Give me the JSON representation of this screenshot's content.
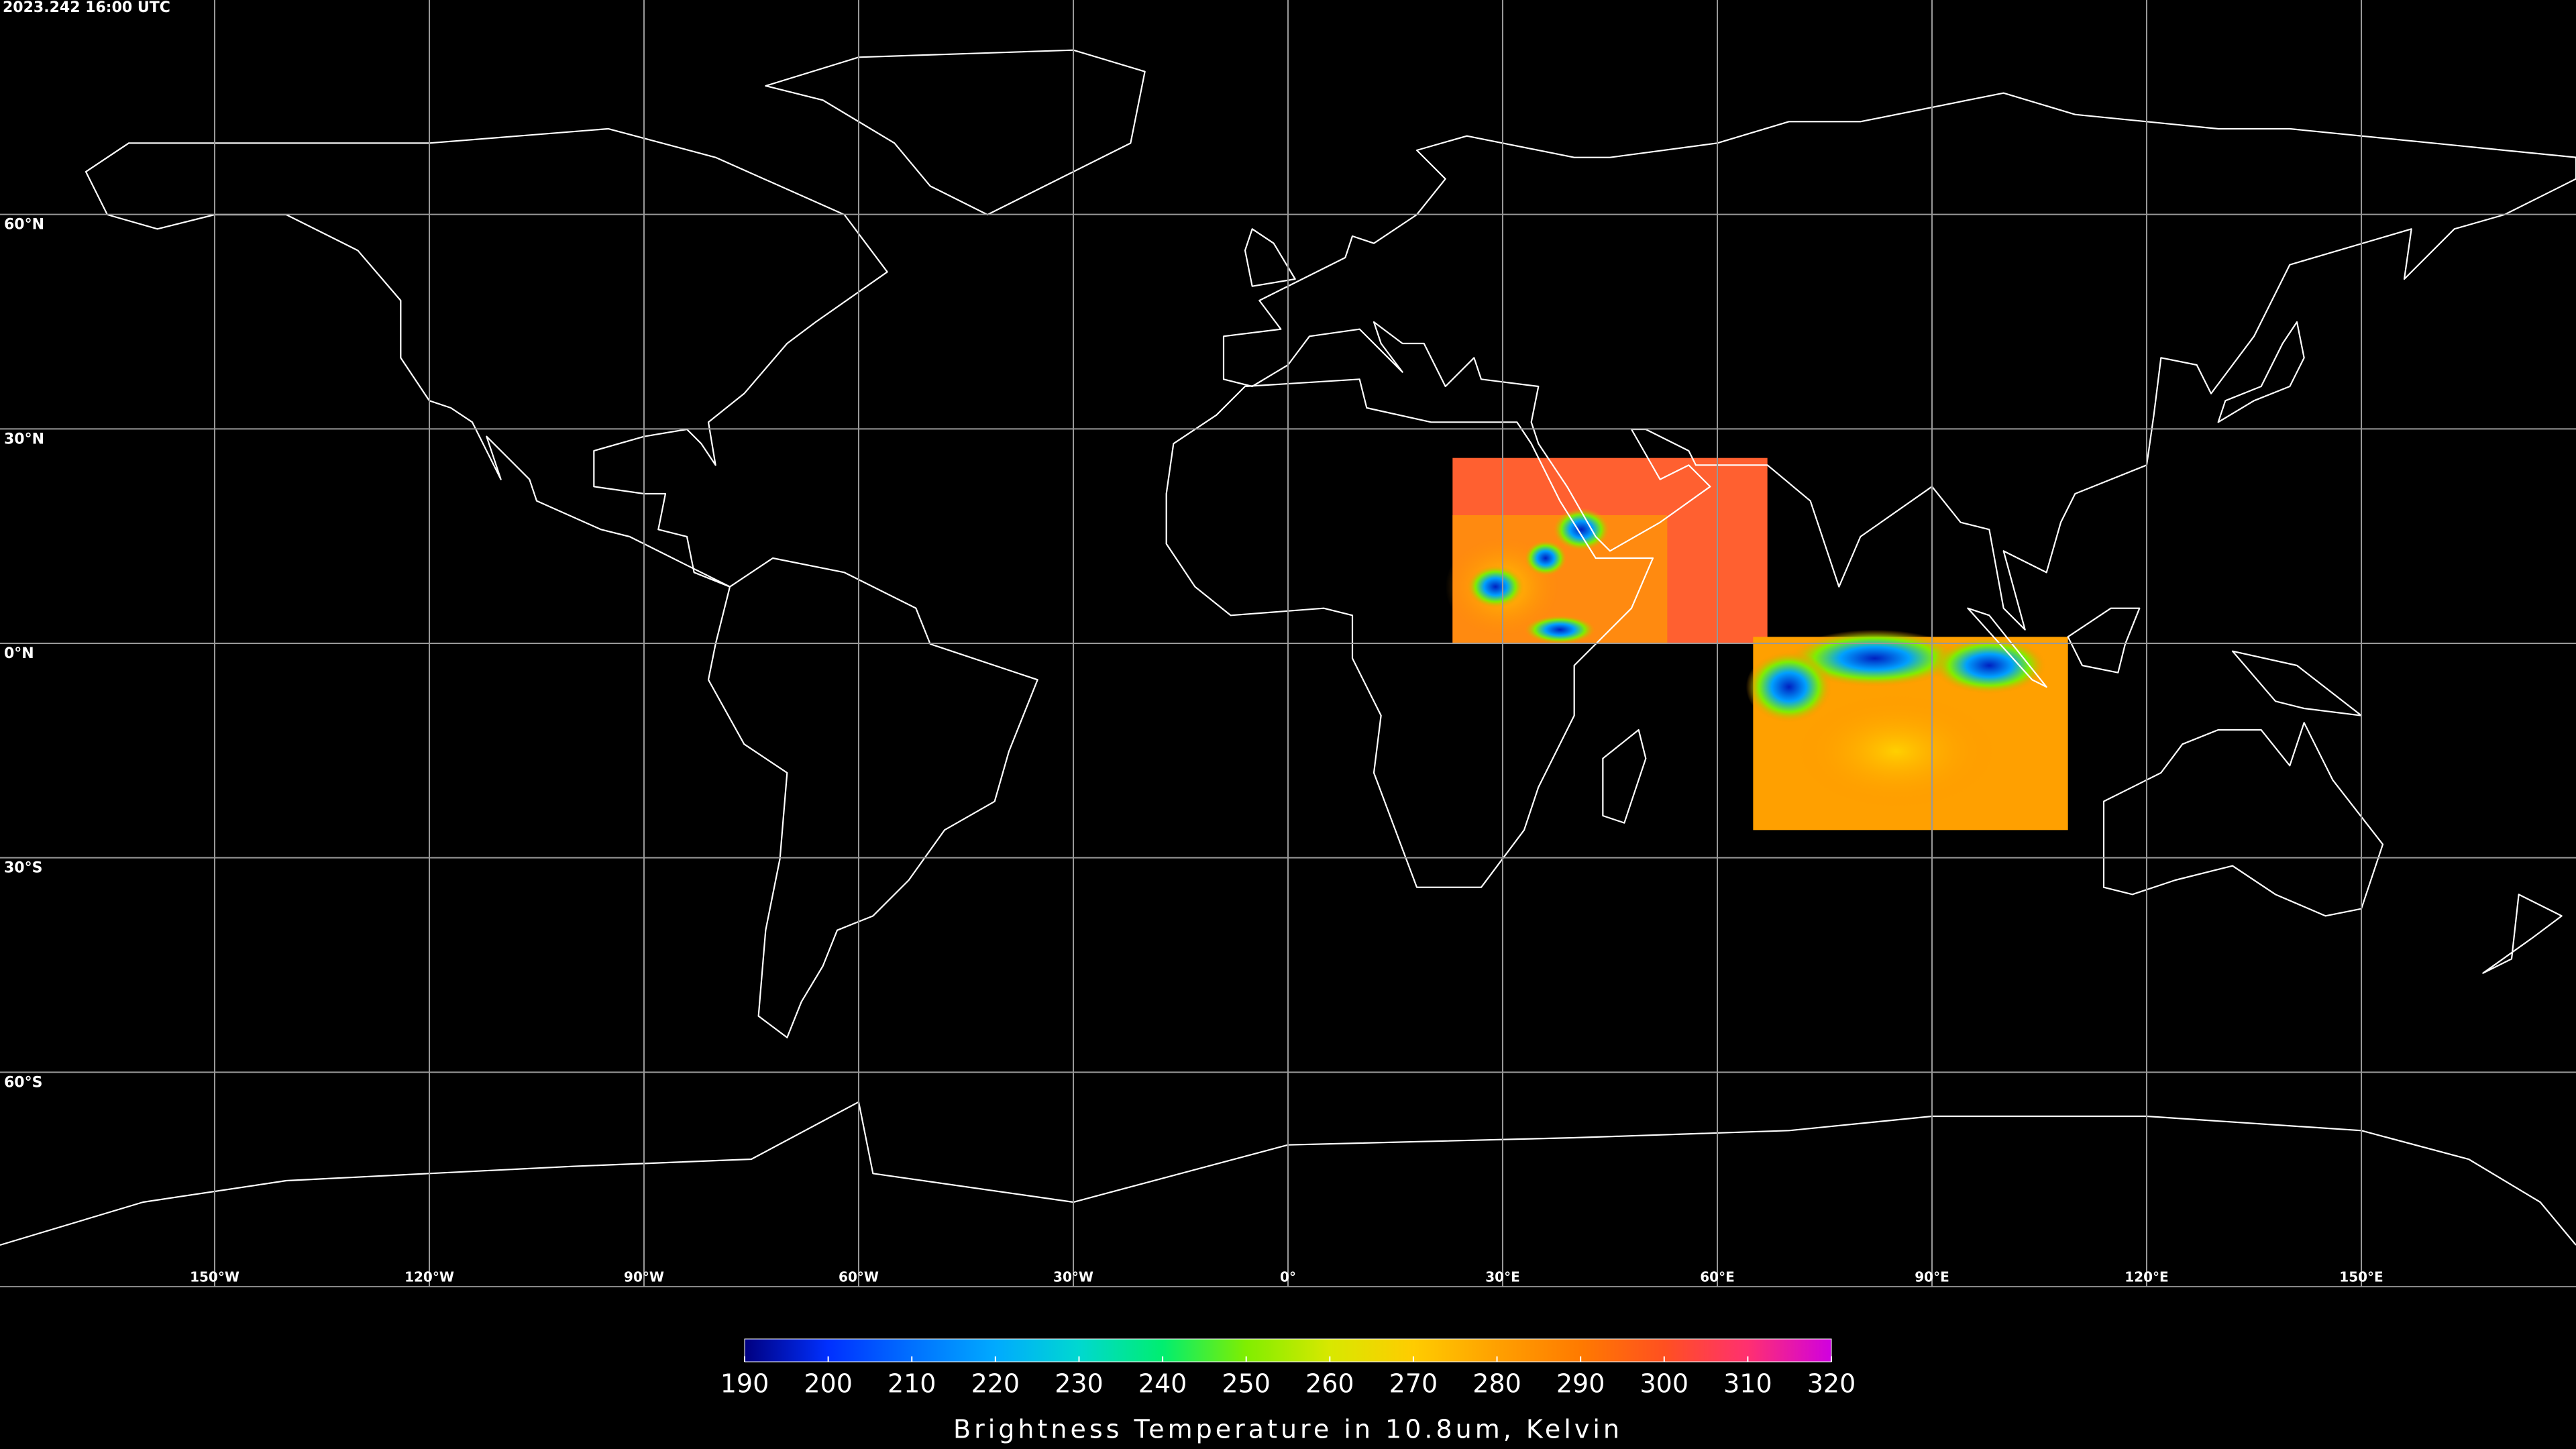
{
  "timestamp": "2023.242 16:00 UTC",
  "map": {
    "grid": true,
    "lon_ticks": [
      {
        "value": -150,
        "label": "150°W"
      },
      {
        "value": -120,
        "label": "120°W"
      },
      {
        "value": -90,
        "label": "90°W"
      },
      {
        "value": -60,
        "label": "60°W"
      },
      {
        "value": -30,
        "label": "30°W"
      },
      {
        "value": 0,
        "label": "0°"
      },
      {
        "value": 30,
        "label": "30°E"
      },
      {
        "value": 60,
        "label": "60°E"
      },
      {
        "value": 90,
        "label": "90°E"
      },
      {
        "value": 120,
        "label": "120°E"
      },
      {
        "value": 150,
        "label": "150°E"
      }
    ],
    "lat_ticks": [
      {
        "value": 60,
        "label": "60°N"
      },
      {
        "value": 30,
        "label": "30°N"
      },
      {
        "value": 0,
        "label": "0°N"
      },
      {
        "value": -30,
        "label": "30°S"
      },
      {
        "value": -60,
        "label": "60°S"
      }
    ]
  },
  "colorbar": {
    "title": "Brightness Temperature in 10.8um, Kelvin",
    "lim": [
      190,
      320
    ],
    "ticks": [
      190,
      200,
      210,
      220,
      230,
      240,
      250,
      260,
      270,
      280,
      290,
      300,
      310,
      320
    ],
    "colors": [
      "#000080",
      "#0030ff",
      "#0070ff",
      "#00aaff",
      "#00d8d0",
      "#00ee70",
      "#80ee00",
      "#d8e800",
      "#ffcc00",
      "#ffa000",
      "#ff7a00",
      "#ff5020",
      "#ff3070",
      "#d000e0"
    ]
  }
}
